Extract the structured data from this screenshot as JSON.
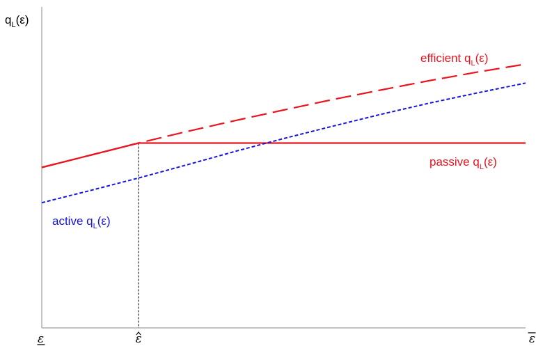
{
  "chart_data": {
    "type": "line",
    "ylabel": "q",
    "ylabel_sub": "L",
    "ylabel_arg": "(ε)",
    "xlabel": "",
    "x_ticks": [
      {
        "label": "ε",
        "x": 0,
        "underline": true,
        "overline": false,
        "hat": false
      },
      {
        "label": "ε̂",
        "x": 0.2,
        "underline": false,
        "overline": false,
        "hat": true
      },
      {
        "label": "ε",
        "x": 1,
        "underline": false,
        "overline": true,
        "hat": false
      }
    ],
    "xlim": [
      0,
      1
    ],
    "ylim": [
      0,
      1
    ],
    "grid": false,
    "kink_x": 0.2,
    "series": [
      {
        "name": "efficient qL(ε)",
        "label_main": "efficient q",
        "label_sub": "L",
        "label_arg": "(ε)",
        "color": "#e8141e",
        "style": "long-dash",
        "x": [
          0,
          0.1,
          0.2,
          0.3,
          0.4,
          0.5,
          0.6,
          0.7,
          0.8,
          0.9,
          1.0
        ],
        "y": [
          0.5,
          0.538,
          0.576,
          0.612,
          0.646,
          0.679,
          0.711,
          0.741,
          0.77,
          0.797,
          0.822
        ]
      },
      {
        "name": "passive qL(ε)",
        "label_main": "passive q",
        "label_sub": "L",
        "label_arg": "(ε)",
        "color": "#e8141e",
        "style": "solid",
        "x": [
          0,
          0.1,
          0.2,
          0.3,
          0.4,
          0.5,
          0.6,
          0.7,
          0.8,
          0.9,
          1.0
        ],
        "y": [
          0.5,
          0.538,
          0.576,
          0.576,
          0.576,
          0.576,
          0.576,
          0.576,
          0.576,
          0.576,
          0.576
        ]
      },
      {
        "name": "active qL(ε)",
        "label_main": "active q",
        "label_sub": "L",
        "label_arg": "(ε)",
        "color": "#1414dc",
        "style": "short-dash",
        "x": [
          0,
          0.1,
          0.2,
          0.3,
          0.4,
          0.5,
          0.6,
          0.7,
          0.8,
          0.9,
          1.0
        ],
        "y": [
          0.39,
          0.428,
          0.467,
          0.508,
          0.55,
          0.59,
          0.628,
          0.665,
          0.7,
          0.732,
          0.763
        ]
      }
    ]
  }
}
